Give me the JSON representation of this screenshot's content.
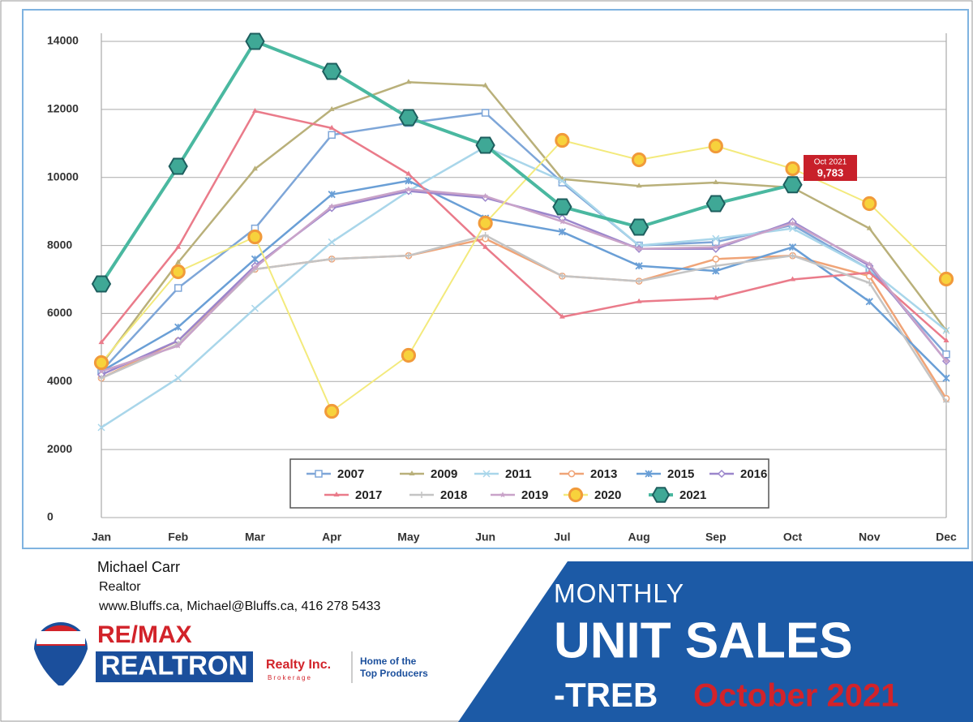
{
  "chart_data": {
    "type": "line",
    "categories": [
      "Jan",
      "Feb",
      "Mar",
      "Apr",
      "May",
      "Jun",
      "Jul",
      "Aug",
      "Sep",
      "Oct",
      "Nov",
      "Dec"
    ],
    "ylim": [
      0,
      14000
    ],
    "yticks": [
      0,
      2000,
      4000,
      6000,
      8000,
      10000,
      12000,
      14000
    ],
    "grid": true,
    "annotation": "Oct 2021",
    "series": [
      {
        "name": "2007",
        "color": "#7ea6d8",
        "marker": "square",
        "values": [
          4300,
          6750,
          8500,
          11250,
          11600,
          11900,
          9850,
          8000,
          8100,
          8600,
          7300,
          4800
        ]
      },
      {
        "name": "2009",
        "color": "#b9b07a",
        "marker": "triangle",
        "values": [
          4500,
          7500,
          10250,
          12000,
          12800,
          12700,
          9950,
          9750,
          9850,
          9700,
          8500,
          5500
        ]
      },
      {
        "name": "2011",
        "color": "#a9d6ea",
        "marker": "x",
        "values": [
          2650,
          4100,
          6150,
          8100,
          9600,
          10900,
          9900,
          8000,
          8200,
          8500,
          7300,
          5500
        ]
      },
      {
        "name": "2013",
        "color": "#f0a477",
        "marker": "circle",
        "values": [
          4100,
          5200,
          7300,
          7600,
          7700,
          8200,
          7100,
          6950,
          7600,
          7700,
          7100,
          3500
        ]
      },
      {
        "name": "2015",
        "color": "#6a9fd6",
        "marker": "asterisk",
        "values": [
          4300,
          5600,
          7600,
          9500,
          9900,
          8800,
          8400,
          7400,
          7250,
          7950,
          6350,
          4100
        ]
      },
      {
        "name": "2016",
        "color": "#9b86cc",
        "marker": "diamond",
        "values": [
          4200,
          5200,
          7400,
          9100,
          9600,
          9400,
          8800,
          7900,
          7900,
          8700,
          7400,
          4600
        ]
      },
      {
        "name": "2017",
        "color": "#ea7b8a",
        "marker": "triangle",
        "values": [
          5150,
          7950,
          11950,
          11450,
          10100,
          7950,
          5900,
          6350,
          6450,
          7000,
          7200,
          5200
        ]
      },
      {
        "name": "2018",
        "color": "#c4c4c4",
        "marker": "plus",
        "values": [
          4100,
          5100,
          7300,
          7600,
          7700,
          8300,
          7100,
          6950,
          7400,
          7700,
          6900,
          3400
        ]
      },
      {
        "name": "2019",
        "color": "#c9a3c9",
        "marker": "star",
        "values": [
          4300,
          5050,
          7350,
          9150,
          9650,
          9450,
          8700,
          7900,
          7950,
          8650,
          7450,
          4600
        ]
      },
      {
        "name": "2020",
        "color": "#f3ea7c",
        "marker": "ring",
        "values": [
          4555,
          7227,
          8252,
          3124,
          4770,
          8657,
          11090,
          10518,
          10923,
          10256,
          9230,
          7012
        ]
      },
      {
        "name": "2021",
        "color": "#4ab8a0",
        "marker": "hexagon",
        "values": [
          6869,
          10327,
          14000,
          13117,
          11758,
          10947,
          9135,
          8538,
          9230,
          9783,
          null,
          null
        ],
        "value_labels": [
          null,
          null,
          null,
          null,
          null,
          null,
          null,
          null,
          null,
          "9,783",
          null,
          null
        ]
      }
    ]
  },
  "contact": {
    "name": "Michael Carr",
    "role": "Realtor",
    "details": "www.Bluffs.ca, Michael@Bluffs.ca, 416 278 5433"
  },
  "brand": {
    "remax": "RE/MAX",
    "office": "REALTRON",
    "company": "Realty Inc.",
    "brokerage": "Brokerage",
    "tagline": [
      "Home of the",
      "Top Producers"
    ]
  },
  "banner": {
    "line1": "MONTHLY",
    "line2": "UNIT SALES",
    "line3": "-TREB",
    "date": "October 2021"
  }
}
